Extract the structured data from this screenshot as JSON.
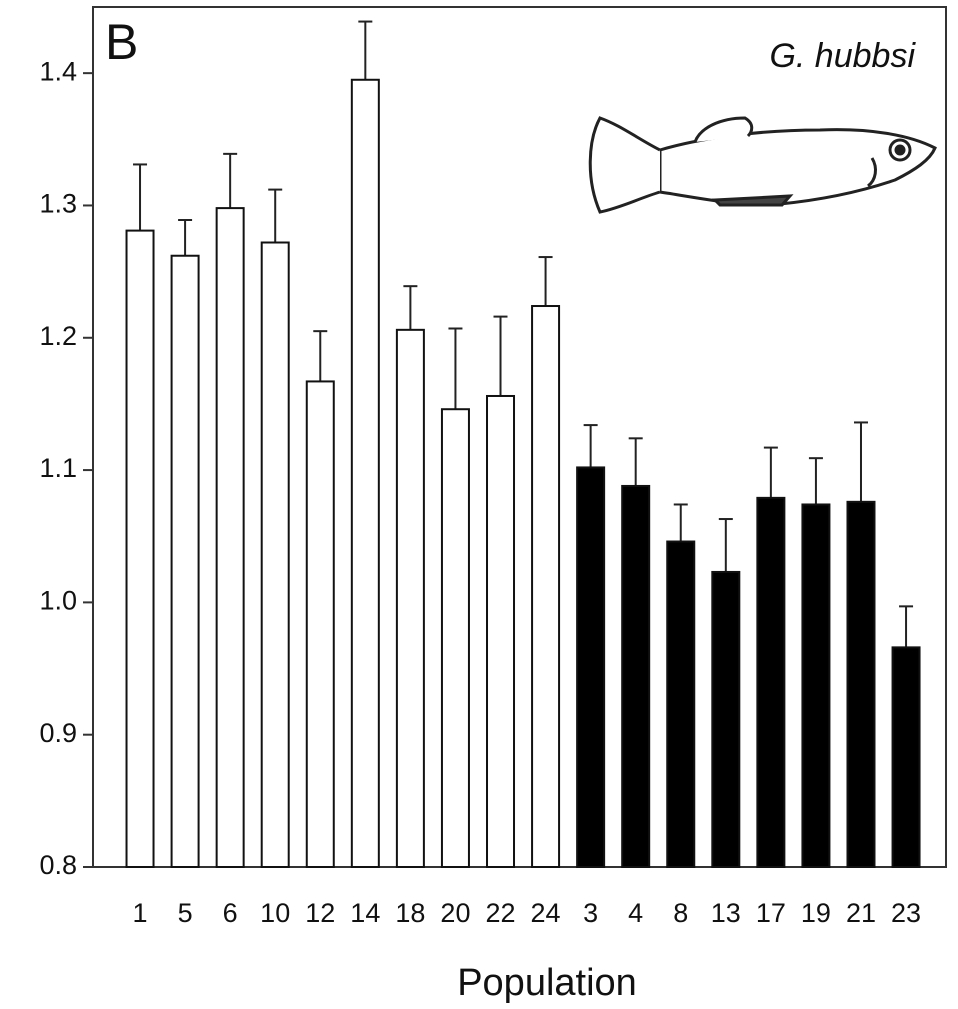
{
  "chart_data": {
    "type": "bar",
    "panel_label": "B",
    "annotation": "G. hubbsi",
    "x_label": "Population",
    "categories": [
      "1",
      "5",
      "6",
      "10",
      "12",
      "14",
      "18",
      "20",
      "22",
      "24",
      "3",
      "4",
      "8",
      "13",
      "17",
      "19",
      "21",
      "23"
    ],
    "values": [
      1.281,
      1.262,
      1.298,
      1.272,
      1.167,
      1.395,
      1.206,
      1.146,
      1.156,
      1.224,
      1.102,
      1.088,
      1.046,
      1.023,
      1.079,
      1.074,
      1.076,
      0.966
    ],
    "errors": [
      0.05,
      0.027,
      0.041,
      0.04,
      0.038,
      0.044,
      0.033,
      0.061,
      0.06,
      0.037,
      0.032,
      0.036,
      0.028,
      0.04,
      0.038,
      0.035,
      0.06,
      0.031
    ],
    "colors": [
      "#ffffff",
      "#ffffff",
      "#ffffff",
      "#ffffff",
      "#ffffff",
      "#ffffff",
      "#ffffff",
      "#ffffff",
      "#ffffff",
      "#ffffff",
      "#000000",
      "#000000",
      "#000000",
      "#000000",
      "#000000",
      "#000000",
      "#000000",
      "#000000"
    ],
    "ylim": [
      0.8,
      1.45
    ],
    "yticks": [
      0.8,
      0.9,
      {
        "value": 1,
        "label": "1.0"
      },
      1.1,
      1.2,
      1.3,
      1.4
    ],
    "grid": false
  }
}
